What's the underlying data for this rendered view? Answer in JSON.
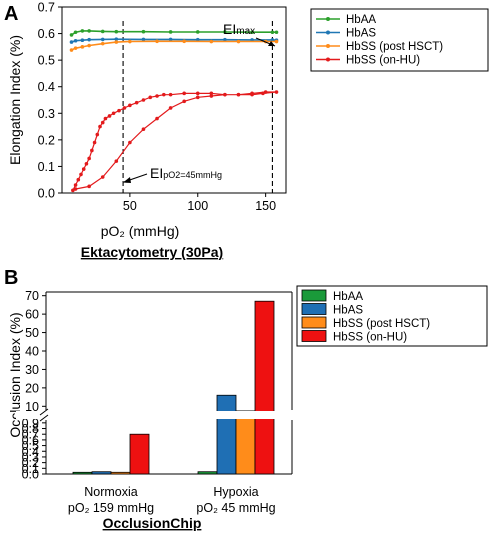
{
  "chart_data": [
    {
      "panel_label": "A",
      "type": "line",
      "caption": "Ektacytometry (30Pa)",
      "xlabel": "pO₂ (mmHg)",
      "ylabel": "Elongation Index (%)",
      "xlim": [
        0,
        165
      ],
      "ylim": [
        0,
        0.7
      ],
      "xticks": [
        "50",
        "100",
        "150"
      ],
      "yticks": [
        "0.0",
        "0.1",
        "0.2",
        "0.3",
        "0.4",
        "0.5",
        "0.6",
        "0.7"
      ],
      "legend_position": "outside-right",
      "vlines": [
        45,
        155
      ],
      "annotations": {
        "eimax_main": "EI",
        "eimax_sub": "max",
        "eipo2_main": "EI",
        "eipo2_sub": "pO2=45mmHg"
      },
      "series": [
        {
          "name": "HbAA",
          "color": "#2ca02c",
          "x": [
            7,
            10,
            15,
            20,
            30,
            40,
            60,
            80,
            100,
            120,
            140,
            155,
            158
          ],
          "y": [
            0.595,
            0.605,
            0.61,
            0.61,
            0.608,
            0.607,
            0.607,
            0.606,
            0.606,
            0.606,
            0.605,
            0.605,
            0.605
          ]
        },
        {
          "name": "HbAS",
          "color": "#1f77b4",
          "x": [
            7,
            10,
            15,
            20,
            30,
            40,
            60,
            80,
            100,
            120,
            140,
            155,
            158
          ],
          "y": [
            0.568,
            0.573,
            0.575,
            0.577,
            0.578,
            0.579,
            0.578,
            0.578,
            0.577,
            0.577,
            0.576,
            0.576,
            0.575
          ]
        },
        {
          "name": "HbSS (post HSCT)",
          "color": "#ff8c1a",
          "x": [
            7,
            10,
            15,
            20,
            30,
            40,
            50,
            70,
            90,
            110,
            130,
            150,
            158
          ],
          "y": [
            0.538,
            0.545,
            0.55,
            0.555,
            0.562,
            0.568,
            0.57,
            0.571,
            0.571,
            0.57,
            0.57,
            0.57,
            0.57
          ]
        },
        {
          "name": "HbSS (on-HU)",
          "color": "#e31a1c",
          "x": [
            8,
            10,
            12,
            14,
            16,
            18,
            20,
            22,
            24,
            26,
            28,
            30,
            32,
            35,
            38,
            42,
            46,
            50,
            55,
            60,
            65,
            70,
            75,
            80,
            90,
            100,
            110,
            120,
            130,
            140,
            150,
            158,
            148,
            140,
            130,
            120,
            110,
            100,
            90,
            80,
            70,
            60,
            50,
            40,
            30,
            20,
            10
          ],
          "y": [
            0.01,
            0.03,
            0.05,
            0.07,
            0.09,
            0.11,
            0.13,
            0.16,
            0.19,
            0.22,
            0.25,
            0.265,
            0.28,
            0.29,
            0.3,
            0.31,
            0.32,
            0.33,
            0.34,
            0.35,
            0.36,
            0.365,
            0.37,
            0.37,
            0.375,
            0.375,
            0.375,
            0.37,
            0.37,
            0.375,
            0.38,
            0.38,
            0.375,
            0.37,
            0.37,
            0.37,
            0.365,
            0.36,
            0.345,
            0.32,
            0.28,
            0.24,
            0.19,
            0.12,
            0.06,
            0.025,
            0.015
          ]
        }
      ]
    },
    {
      "panel_label": "B",
      "type": "bar",
      "caption": "OcclusionChip",
      "ylabel": "Occlusion Index (%)",
      "axis_break": true,
      "categories": [
        {
          "line1": "Normoxia",
          "line2": "pO₂ 159 mmHg"
        },
        {
          "line1": "Hypoxia",
          "line2": "pO₂ 45 mmHg"
        }
      ],
      "yticks_lower": [
        "0.0",
        "0.1",
        "0.2",
        "0.3",
        "0.4",
        "0.5",
        "0.6",
        "0.7",
        "0.8",
        "0.9"
      ],
      "yticks_upper": [
        "10",
        "20",
        "30",
        "40",
        "50",
        "60",
        "70"
      ],
      "legend_position": "outside-right",
      "series": [
        {
          "name": "HbAA",
          "color": "#1a9a3a",
          "values": [
            0.03,
            0.04
          ]
        },
        {
          "name": "HbAS",
          "color": "#1f6fb4",
          "values": [
            0.04,
            16
          ]
        },
        {
          "name": "HbSS (post HSCT)",
          "color": "#ff8c1a",
          "values": [
            0.03,
            7.5
          ]
        },
        {
          "name": "HbSS (on-HU)",
          "color": "#ee1111",
          "values": [
            0.7,
            67
          ]
        }
      ]
    }
  ]
}
